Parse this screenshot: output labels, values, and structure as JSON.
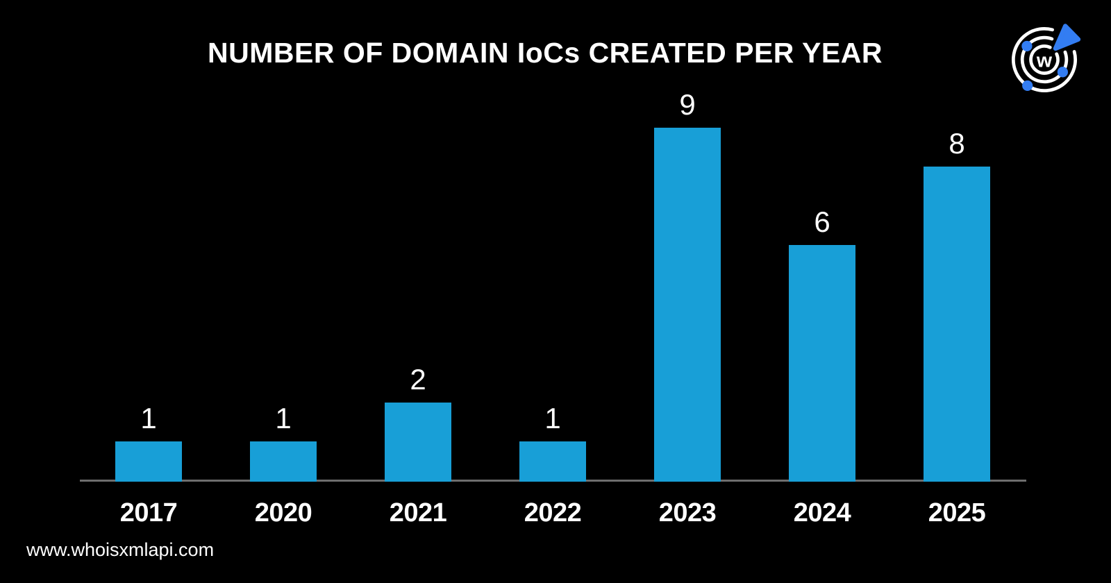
{
  "page": {
    "background": "#000000",
    "footer_url": "www.whoisxmlapi.com"
  },
  "logo": {
    "name": "whoisxmlapi-radar-logo",
    "letter": "w",
    "ring_color": "#ffffff",
    "accent_blue": "#337df2"
  },
  "chart_data": {
    "type": "bar",
    "title": "NUMBER OF DOMAIN IoCs CREATED PER YEAR",
    "categories": [
      "2017",
      "2020",
      "2021",
      "2022",
      "2023",
      "2024",
      "2025"
    ],
    "values": [
      1,
      1,
      2,
      1,
      9,
      6,
      8
    ],
    "xlabel": "",
    "ylabel": "",
    "ylim": [
      0,
      9
    ],
    "gridlines": false,
    "legend_position": "none",
    "data_labels": "above-bars",
    "bar_color": "#189fd7",
    "label_color": "#ffffff",
    "axis_line_color": "#6e6e6e",
    "background_color": "#000000"
  }
}
